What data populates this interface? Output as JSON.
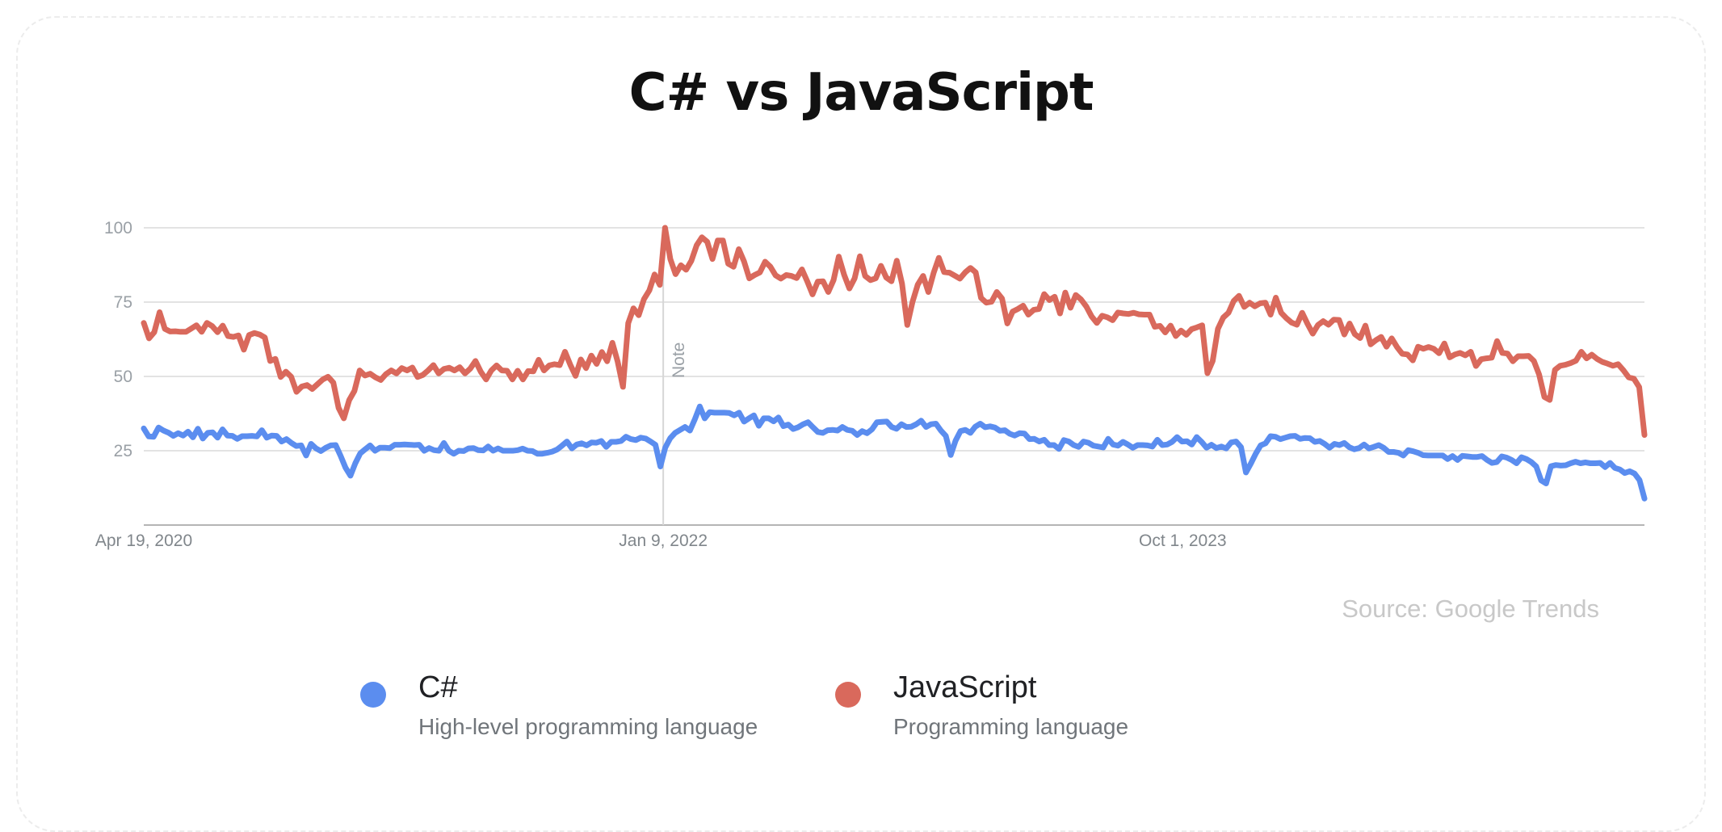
{
  "page": {
    "title": "C# vs JavaScript",
    "source": "Source: Google Trends"
  },
  "legend": [
    {
      "name": "C#",
      "description": "High-level programming language",
      "color": "#5b8def"
    },
    {
      "name": "JavaScript",
      "description": "Programming language",
      "color": "#d9695c"
    }
  ],
  "chart_data": {
    "type": "line",
    "x_start": "Apr 19, 2020",
    "x_end": "Apr 13, 2025",
    "x_interval": "weekly",
    "x_tick_labels": [
      "Apr 19, 2020",
      "Jan 9, 2022",
      "Oct 1, 2023"
    ],
    "y_ticks": [
      25,
      50,
      75,
      100
    ],
    "ylim": [
      0,
      100
    ],
    "grid": true,
    "annotations": [
      {
        "label": "Note",
        "at": "Jan 9, 2022"
      }
    ],
    "series": [
      {
        "name": "C#",
        "color": "#5b8def",
        "values": [
          32.5,
          29.8,
          29.7,
          32.8,
          31.8,
          31.1,
          30.0,
          30.9,
          30.1,
          31.4,
          29.5,
          32.4,
          29.1,
          31.0,
          31.2,
          29.4,
          32.2,
          30.1,
          30.0,
          29.0,
          29.9,
          29.9,
          30.0,
          29.8,
          31.9,
          29.4,
          30.1,
          30.0,
          28.1,
          28.9,
          27.6,
          26.6,
          26.8,
          23.4,
          27.3,
          25.8,
          24.9,
          26.0,
          26.8,
          26.9,
          23.3,
          19.3,
          16.6,
          20.8,
          24.1,
          25.5,
          26.8,
          25.0,
          26.0,
          26.0,
          25.9,
          27.0,
          27.0,
          27.1,
          27.0,
          26.9,
          27.0,
          25.0,
          25.9,
          25.2,
          25.0,
          27.6,
          25.0,
          24.0,
          25.0,
          24.9,
          25.8,
          25.9,
          25.2,
          25.1,
          26.4,
          25.0,
          25.8,
          25.0,
          25.0,
          25.0,
          25.2,
          25.7,
          25.0,
          24.9,
          24.0,
          24.0,
          24.3,
          24.7,
          25.4,
          26.7,
          28.1,
          25.8,
          27.1,
          27.5,
          26.8,
          27.8,
          27.7,
          28.3,
          26.3,
          28.0,
          28.0,
          28.3,
          29.7,
          28.9,
          28.6,
          29.4,
          29.1,
          28.1,
          27.0,
          19.7,
          26.1,
          29.2,
          31.0,
          32.0,
          33.0,
          31.8,
          35.6,
          39.9,
          35.9,
          38.0,
          37.8,
          37.8,
          37.8,
          37.7,
          36.9,
          37.8,
          34.8,
          35.9,
          36.9,
          33.4,
          35.9,
          35.9,
          34.9,
          36.2,
          33.3,
          33.8,
          32.3,
          32.9,
          33.9,
          34.6,
          32.9,
          31.3,
          31.0,
          31.9,
          32.0,
          31.8,
          33.0,
          32.0,
          31.7,
          30.3,
          31.6,
          30.9,
          32.2,
          34.6,
          34.7,
          34.8,
          33.0,
          32.4,
          33.9,
          33.0,
          33.1,
          33.9,
          35.1,
          33.0,
          33.9,
          34.1,
          31.8,
          30.0,
          23.6,
          28.4,
          31.6,
          32.0,
          31.0,
          33.1,
          34.1,
          32.9,
          33.2,
          32.8,
          31.7,
          31.9,
          30.7,
          30.1,
          30.9,
          30.8,
          28.9,
          29.0,
          28.1,
          28.7,
          26.9,
          26.9,
          25.6,
          28.6,
          28.1,
          26.9,
          26.3,
          28.1,
          27.7,
          26.7,
          26.4,
          26.1,
          29.0,
          27.1,
          26.7,
          28.0,
          27.1,
          26.0,
          26.9,
          26.9,
          26.8,
          26.4,
          28.7,
          26.9,
          27.1,
          28.0,
          29.6,
          28.1,
          28.2,
          27.1,
          29.6,
          28.0,
          26.0,
          27.0,
          25.9,
          26.4,
          25.8,
          27.8,
          28.1,
          26.2,
          17.7,
          20.7,
          24.0,
          26.8,
          27.5,
          29.9,
          29.7,
          28.9,
          29.4,
          29.9,
          30.0,
          29.0,
          29.3,
          29.2,
          28.0,
          28.3,
          27.3,
          26.0,
          27.3,
          26.9,
          27.6,
          26.2,
          25.5,
          25.9,
          27.1,
          25.8,
          26.3,
          26.9,
          26.0,
          24.6,
          24.6,
          24.3,
          23.4,
          25.2,
          24.8,
          24.3,
          23.5,
          23.4,
          23.4,
          23.4,
          23.4,
          22.2,
          23.2,
          21.9,
          23.3,
          23.1,
          22.9,
          22.9,
          23.2,
          21.9,
          20.9,
          21.2,
          23.1,
          22.7,
          21.9,
          20.8,
          22.8,
          22.2,
          21.2,
          19.7,
          15.0,
          14.0,
          19.8,
          20.2,
          20.0,
          20.1,
          20.8,
          21.3,
          20.8,
          21.1,
          20.8,
          20.8,
          20.9,
          19.5,
          20.9,
          19.2,
          18.7,
          17.5,
          18.1,
          17.3,
          15.1,
          8.9
        ]
      },
      {
        "name": "JavaScript",
        "color": "#d9695c",
        "values": [
          68.0,
          62.8,
          64.9,
          71.6,
          66.0,
          65.1,
          65.2,
          65.0,
          65.0,
          66.1,
          67.2,
          65.0,
          68.0,
          66.9,
          64.9,
          67.1,
          63.6,
          63.3,
          63.8,
          59.0,
          63.9,
          64.6,
          64.1,
          63.1,
          55.2,
          55.9,
          49.8,
          51.6,
          49.9,
          44.8,
          46.6,
          47.1,
          45.8,
          47.4,
          49.0,
          49.9,
          47.9,
          39.4,
          35.9,
          42.0,
          45.1,
          52.0,
          50.3,
          50.9,
          49.7,
          48.8,
          50.8,
          52.0,
          51.0,
          52.8,
          52.0,
          53.0,
          49.8,
          50.5,
          52.0,
          53.8,
          51.0,
          52.5,
          52.9,
          52.0,
          53.1,
          51.0,
          52.6,
          55.2,
          51.6,
          49.0,
          52.0,
          53.7,
          52.0,
          51.9,
          49.0,
          51.9,
          49.0,
          51.8,
          51.7,
          55.6,
          52.0,
          53.7,
          54.1,
          53.8,
          58.3,
          53.9,
          50.2,
          55.7,
          52.8,
          57.0,
          54.2,
          58.2,
          55.1,
          61.3,
          55.0,
          46.5,
          67.9,
          72.9,
          70.6,
          76.0,
          78.9,
          84.3,
          80.8,
          100.0,
          89.5,
          84.4,
          87.4,
          85.9,
          88.9,
          94.1,
          96.8,
          95.3,
          89.5,
          95.7,
          95.7,
          87.9,
          86.9,
          92.8,
          88.7,
          83.0,
          84.1,
          85.0,
          88.6,
          86.9,
          84.0,
          82.9,
          84.1,
          83.8,
          83.1,
          86.0,
          82.0,
          77.6,
          81.9,
          82.0,
          78.4,
          82.4,
          90.3,
          84.2,
          79.6,
          83.0,
          90.4,
          83.8,
          82.4,
          83.0,
          87.2,
          83.3,
          82.0,
          88.9,
          81.2,
          67.3,
          75.1,
          80.9,
          83.8,
          78.4,
          84.8,
          89.9,
          85.1,
          84.9,
          83.9,
          82.9,
          85.0,
          86.5,
          85.0,
          76.4,
          74.8,
          75.1,
          78.4,
          76.2,
          67.8,
          71.8,
          72.7,
          73.8,
          70.8,
          72.4,
          72.7,
          77.7,
          75.7,
          76.8,
          71.2,
          78.2,
          73.1,
          77.4,
          75.9,
          73.5,
          70.2,
          68.0,
          70.4,
          69.9,
          68.9,
          71.5,
          71.2,
          71.0,
          71.4,
          70.9,
          70.8,
          70.8,
          66.7,
          67.0,
          64.8,
          67.1,
          63.6,
          65.4,
          64.0,
          65.9,
          66.5,
          67.2,
          51.1,
          55.2,
          66.0,
          69.8,
          71.4,
          75.4,
          77.1,
          73.4,
          74.8,
          73.6,
          74.6,
          74.8,
          70.8,
          76.5,
          71.4,
          69.6,
          68.1,
          67.4,
          71.4,
          67.7,
          64.4,
          67.3,
          68.6,
          67.4,
          69.1,
          69.0,
          64.1,
          67.8,
          64.2,
          62.9,
          67.1,
          60.8,
          62.2,
          63.3,
          60.0,
          62.8,
          59.9,
          57.6,
          57.4,
          55.4,
          60.0,
          59.3,
          59.9,
          59.3,
          57.8,
          61.1,
          56.4,
          57.4,
          57.9,
          57.1,
          58.3,
          53.5,
          55.8,
          56.1,
          56.3,
          61.9,
          57.9,
          57.7,
          55.1,
          56.8,
          56.8,
          56.9,
          55.2,
          50.6,
          43.1,
          42.1,
          52.2,
          53.6,
          53.9,
          54.5,
          55.3,
          58.3,
          56.1,
          57.3,
          55.9,
          54.9,
          54.3,
          53.6,
          54.1,
          52.1,
          49.7,
          49.2,
          46.4,
          30.3
        ]
      }
    ]
  }
}
